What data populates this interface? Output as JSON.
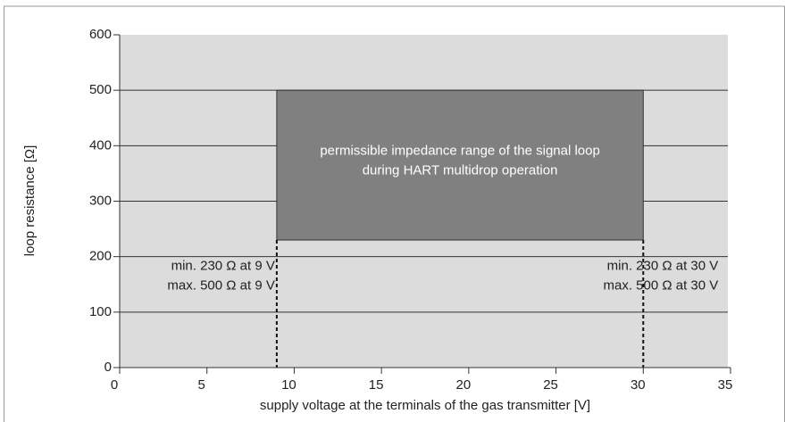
{
  "chart_data": {
    "type": "range",
    "xlabel": "supply voltage at the terminals of the gas transmitter [V]",
    "ylabel": "loop resistance [Ω]",
    "xlim": [
      0,
      35
    ],
    "xticks": [
      0,
      5,
      10,
      15,
      20,
      25,
      30,
      35
    ],
    "ylim": [
      0,
      600
    ],
    "yticks": [
      0,
      100,
      200,
      300,
      400,
      500,
      600
    ],
    "grid": true,
    "region": {
      "x": [
        9,
        30
      ],
      "y": [
        230,
        500
      ],
      "color": "#808080",
      "label": [
        "permissible impedance range of the signal loop",
        "during HART multidrop operation"
      ]
    },
    "annotations": {
      "left": [
        "min. 230 Ω at 9 V",
        "max. 500 Ω at 9 V"
      ],
      "right": [
        "min. 230 Ω at 30 V",
        "max. 500 Ω at 30 V"
      ]
    }
  }
}
